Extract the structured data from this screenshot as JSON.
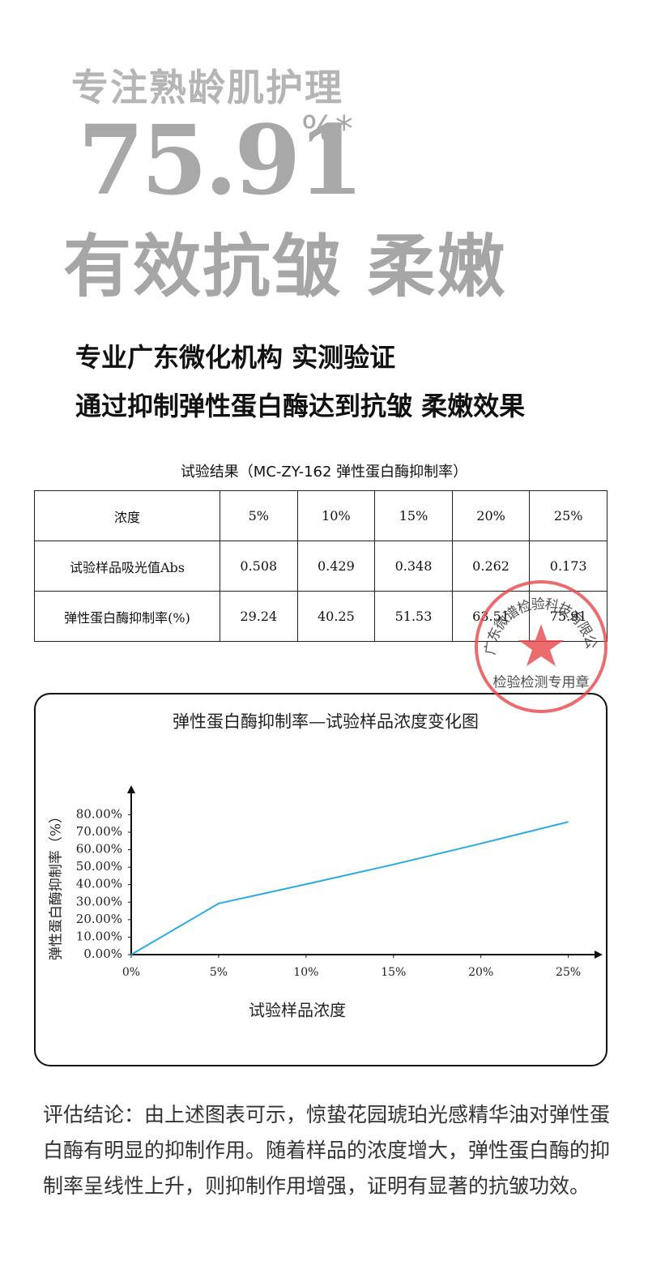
{
  "header": {
    "tagline": "专注熟龄肌护理",
    "stat": "75.91",
    "stat_unit": "%*",
    "headline": "有效抗皱 柔嫩"
  },
  "claims": [
    "专业广东微化机构 实测验证",
    "通过抑制弹性蛋白酶达到抗皱 柔嫩效果"
  ],
  "table": {
    "title": "试验结果（MC-ZY-162 弹性蛋白酶抑制率）",
    "rows": [
      [
        "浓度",
        "5%",
        "10%",
        "15%",
        "20%",
        "25%"
      ],
      [
        "试验样品吸光值Abs",
        "0.508",
        "0.429",
        "0.348",
        "0.262",
        "0.173"
      ],
      [
        "弹性蛋白酶抑制率(%)",
        "29.24",
        "40.25",
        "51.53",
        "63.51",
        "75.91"
      ]
    ]
  },
  "stamp": {
    "text": "广东微谱检验科技有限公司",
    "subtext": "检验检测专用章"
  },
  "chart_data": {
    "type": "line",
    "title": "弹性蛋白酶抑制率—试验样品浓度变化图",
    "x_label": "试验样品浓度",
    "y_label": "弹性蛋白酶抑制率（%）",
    "x": [
      0,
      5,
      10,
      15,
      20,
      25
    ],
    "values": [
      0,
      29.24,
      40.25,
      51.53,
      63.51,
      75.91
    ],
    "color": "#29abe2",
    "xlim": [
      0,
      26.5
    ],
    "ylim": [
      0,
      95
    ],
    "xticks": [
      {
        "value": 0,
        "label": "0%"
      },
      {
        "value": 5,
        "label": "5%"
      },
      {
        "value": 10,
        "label": "10%"
      },
      {
        "value": 15,
        "label": "15%"
      },
      {
        "value": 20,
        "label": "20%"
      },
      {
        "value": 25,
        "label": "25%"
      }
    ],
    "yticks": [
      {
        "value": 0,
        "label": "0.00%"
      },
      {
        "value": 10,
        "label": "10.00%"
      },
      {
        "value": 20,
        "label": "20.00%"
      },
      {
        "value": 30,
        "label": "30.00%"
      },
      {
        "value": 40,
        "label": "40.00%"
      },
      {
        "value": 50,
        "label": "50.00%"
      },
      {
        "value": 60,
        "label": "60.00%"
      },
      {
        "value": 70,
        "label": "70.00%"
      },
      {
        "value": 80,
        "label": "80.00%"
      }
    ],
    "grid": false
  },
  "conclusion": "评估结论：由上述图表可示，惊蛰花园琥珀光感精华油对弹性蛋白酶有明显的抑制作用。随着样品的浓度增大，弹性蛋白酶的抑制率呈线性上升，则抑制作用增强，证明有显著的抗皱功效。"
}
